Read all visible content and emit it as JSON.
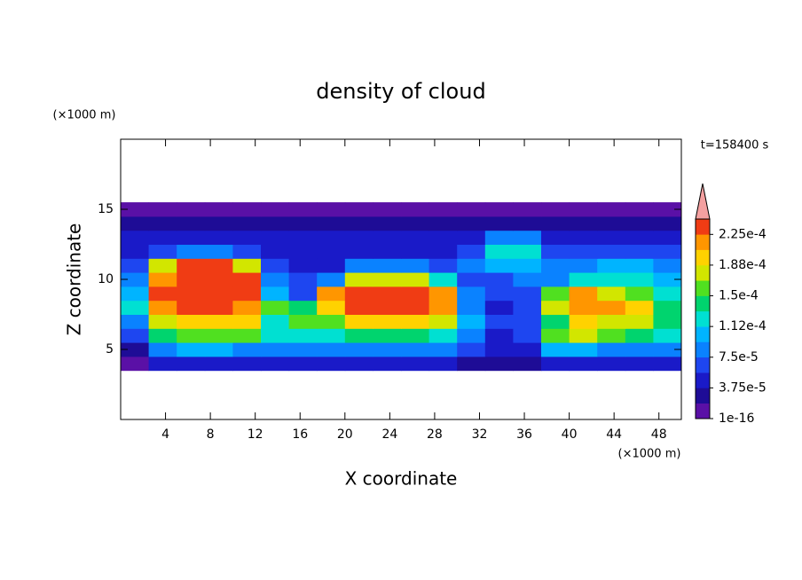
{
  "chart_data": {
    "type": "contour",
    "title": "density of cloud",
    "x_label": "X coordinate",
    "y_label": "Z coordinate",
    "x_unit_label": "(×1000 m)",
    "y_unit_label": "(×1000 m)",
    "time_label": "t=158400 s",
    "xlim": [
      0,
      50
    ],
    "ylim": [
      0,
      20
    ],
    "xticks": [
      4,
      8,
      12,
      16,
      20,
      24,
      28,
      32,
      36,
      40,
      44,
      48
    ],
    "yticks": [
      5,
      10,
      15
    ],
    "x": [
      1.25,
      3.75,
      6.25,
      8.75,
      11.25,
      13.75,
      16.25,
      18.75,
      21.25,
      23.75,
      26.25,
      28.75,
      31.25,
      33.75,
      36.25,
      38.75,
      41.25,
      43.75,
      46.25,
      48.75
    ],
    "y": [
      4,
      5,
      6,
      7,
      8,
      9,
      10,
      11,
      12,
      13,
      14,
      15
    ],
    "z": [
      [
        1e-05,
        4e-05,
        5e-05,
        5e-05,
        5e-05,
        4e-05,
        4e-05,
        4e-05,
        4e-05,
        4e-05,
        4e-05,
        4e-05,
        3e-05,
        3e-05,
        3e-05,
        4e-05,
        4e-05,
        4e-05,
        4e-05,
        4e-05
      ],
      [
        3e-05,
        8e-05,
        0.0001,
        0.0001,
        9e-05,
        8e-05,
        8e-05,
        8e-05,
        9e-05,
        9e-05,
        9e-05,
        8e-05,
        6e-05,
        4e-05,
        5e-05,
        0.0001,
        0.0001,
        9e-05,
        9e-05,
        8e-05
      ],
      [
        6e-05,
        0.00014,
        0.00016,
        0.00016,
        0.00015,
        0.00012,
        0.00012,
        0.00012,
        0.00014,
        0.00014,
        0.00014,
        0.00012,
        9e-05,
        5e-05,
        6e-05,
        0.00016,
        0.00018,
        0.00016,
        0.00014,
        0.00012
      ],
      [
        8e-05,
        0.00018,
        0.0002,
        0.0002,
        0.00019,
        0.00013,
        0.00016,
        0.00016,
        0.0002,
        0.0002,
        0.0002,
        0.00018,
        0.0001,
        6e-05,
        7e-05,
        0.00014,
        0.0002,
        0.00018,
        0.00017,
        0.00014
      ],
      [
        0.00012,
        0.00021,
        0.00023,
        0.00023,
        0.00022,
        0.00016,
        0.00014,
        0.0002,
        0.00023,
        0.00023,
        0.00023,
        0.00021,
        9e-05,
        5e-05,
        6e-05,
        0.00018,
        0.00022,
        0.00021,
        0.00019,
        0.00014
      ],
      [
        0.0001,
        0.00023,
        0.00024,
        0.00024,
        0.00023,
        0.0001,
        7e-05,
        0.00022,
        0.00024,
        0.00024,
        0.00024,
        0.00022,
        8e-05,
        6e-05,
        7e-05,
        0.00015,
        0.00022,
        0.00018,
        0.00016,
        0.00012
      ],
      [
        8e-05,
        0.00022,
        0.00024,
        0.00024,
        0.00023,
        8e-05,
        6e-05,
        8e-05,
        0.00018,
        0.00018,
        0.00018,
        0.00012,
        6e-05,
        7e-05,
        8e-05,
        9e-05,
        0.00012,
        0.00013,
        0.00013,
        0.0001
      ],
      [
        6e-05,
        0.00017,
        0.00023,
        0.00023,
        0.00018,
        6e-05,
        5e-05,
        5e-05,
        8e-05,
        8e-05,
        8e-05,
        7e-05,
        8e-05,
        0.0001,
        0.0001,
        8e-05,
        8e-05,
        0.0001,
        0.0001,
        8e-05
      ],
      [
        5e-05,
        6e-05,
        8e-05,
        8e-05,
        6e-05,
        5e-05,
        4e-05,
        4e-05,
        5e-05,
        5e-05,
        5e-05,
        5e-05,
        7e-05,
        0.00013,
        0.00012,
        7e-05,
        6e-05,
        6e-05,
        7e-05,
        6e-05
      ],
      [
        4e-05,
        4e-05,
        4e-05,
        4e-05,
        4e-05,
        4e-05,
        4e-05,
        4e-05,
        4e-05,
        4e-05,
        4e-05,
        4e-05,
        5e-05,
        8e-05,
        8e-05,
        5e-05,
        4e-05,
        4e-05,
        4e-05,
        4e-05
      ],
      [
        3e-05,
        3e-05,
        3e-05,
        3e-05,
        3e-05,
        3e-05,
        3e-05,
        3e-05,
        3e-05,
        3e-05,
        3e-05,
        3e-05,
        3e-05,
        3e-05,
        3e-05,
        3e-05,
        3e-05,
        3e-05,
        3e-05,
        3e-05
      ],
      [
        1e-05,
        1e-05,
        1e-05,
        1e-05,
        1e-05,
        1e-05,
        1e-05,
        1e-05,
        1e-05,
        1e-05,
        1e-05,
        1e-05,
        1e-05,
        1e-05,
        1e-05,
        1e-05,
        1e-05,
        1e-05,
        1e-05,
        1e-05
      ]
    ],
    "levels": [
      1e-16,
      1.875e-05,
      3.75e-05,
      5.625e-05,
      7.5e-05,
      9.375e-05,
      0.0001125,
      0.00013125,
      0.00015,
      0.00016875,
      0.0001875,
      0.00020625,
      0.000225,
      0.00024375
    ],
    "colors": [
      "#5a10a6",
      "#1e0c96",
      "#1a1ac8",
      "#1e46f0",
      "#0a82ff",
      "#00b4ff",
      "#00e0d2",
      "#00d46e",
      "#50e020",
      "#d2e600",
      "#ffd200",
      "#ff9600",
      "#f03c14"
    ],
    "over_color": "#f4a0a0",
    "colorbar_ticks": [
      {
        "value": 1e-16,
        "label": "1e-16"
      },
      {
        "value": 3.75e-05,
        "label": "3.75e-5"
      },
      {
        "value": 7.5e-05,
        "label": "7.5e-5"
      },
      {
        "value": 0.0001125,
        "label": "1.12e-4"
      },
      {
        "value": 0.00015,
        "label": "1.5e-4"
      },
      {
        "value": 0.0001875,
        "label": "1.88e-4"
      },
      {
        "value": 0.000225,
        "label": "2.25e-4"
      }
    ]
  }
}
